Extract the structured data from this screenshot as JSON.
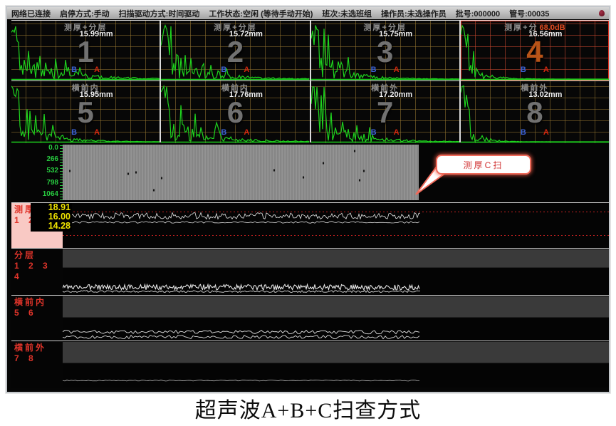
{
  "toolbar": {
    "items": [
      "网络已连接",
      "启停方式:手动",
      "扫描驱动方式:时间驱动",
      "工作状态:空闲 (等待手动开始)",
      "班次:未选班组",
      "操作员:未选操作员",
      "批号:000000",
      "管号:00035"
    ]
  },
  "markers": {
    "b": "B",
    "a": "A"
  },
  "ascan_panels": [
    {
      "num": "1",
      "title": "测厚+分层",
      "value": "15.99mm"
    },
    {
      "num": "2",
      "title": "测厚+分层",
      "value": "15.72mm"
    },
    {
      "num": "3",
      "title": "测厚+分层",
      "value": "15.75mm"
    },
    {
      "num": "4",
      "title": "测厚+分",
      "gain": "68.0dB",
      "value": "16.56mm",
      "selected": true
    },
    {
      "num": "5",
      "title": "横前内",
      "value": "15.95mm"
    },
    {
      "num": "6",
      "title": "横前内",
      "value": "17.76mm"
    },
    {
      "num": "7",
      "title": "横前外",
      "value": "17.20mm"
    },
    {
      "num": "8",
      "title": "横前外",
      "value": "13.02mm"
    }
  ],
  "cscan": {
    "axis_labels": [
      "0.0",
      "266",
      "532",
      "798",
      "1064"
    ],
    "callout": "测厚C扫"
  },
  "bscan_rows": [
    {
      "name": "测厚",
      "channels": "1 2 3",
      "values": [
        "18.91",
        "16.00",
        "14.28"
      ]
    },
    {
      "name": "分层",
      "channels": "1 2 3 4"
    },
    {
      "name": "横前内",
      "channels": "5 6"
    },
    {
      "name": "横前外",
      "channels": "7 8"
    }
  ],
  "caption": "超声波A+B+C扫查方式",
  "colors": {
    "wave_green": "#1ed31e",
    "grid_normal": "#96762f",
    "grid_selected": "#c3462d",
    "selected_border": "#e03020",
    "label_red": "#e0342a",
    "value_yellow": "#f0e400",
    "pink_bg": "#f9c9c4",
    "callout_red": "#d03030",
    "axis_green": "#27c93f"
  }
}
